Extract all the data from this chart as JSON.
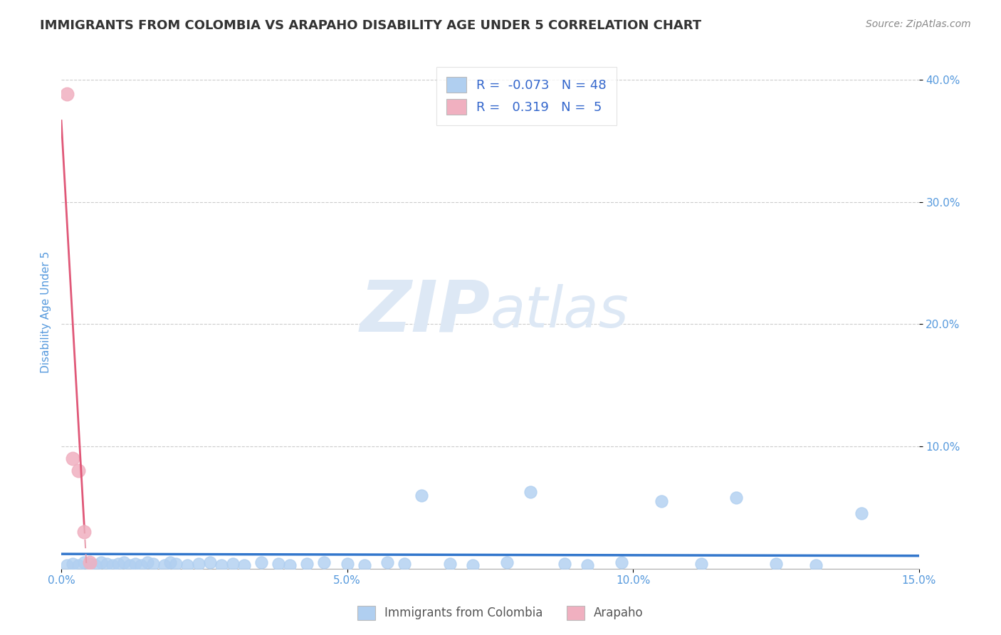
{
  "title": "IMMIGRANTS FROM COLOMBIA VS ARAPAHO DISABILITY AGE UNDER 5 CORRELATION CHART",
  "source": "Source: ZipAtlas.com",
  "ylabel": "Disability Age Under 5",
  "watermark_zip": "ZIP",
  "watermark_atlas": "atlas",
  "xlim": [
    0.0,
    0.15
  ],
  "ylim": [
    0.0,
    0.42
  ],
  "xticks": [
    0.0,
    0.05,
    0.1,
    0.15
  ],
  "xticklabels": [
    "0.0%",
    "5.0%",
    "10.0%",
    "15.0%"
  ],
  "yticks": [
    0.1,
    0.2,
    0.3,
    0.4
  ],
  "yticklabels": [
    "10.0%",
    "20.0%",
    "30.0%",
    "40.0%"
  ],
  "series_blue": {
    "name": "Immigrants from Colombia",
    "R": -0.073,
    "N": 48,
    "color": "#b0cff0",
    "trend_color": "#3377cc",
    "x": [
      0.001,
      0.002,
      0.003,
      0.004,
      0.005,
      0.006,
      0.007,
      0.008,
      0.009,
      0.01,
      0.011,
      0.012,
      0.013,
      0.014,
      0.015,
      0.016,
      0.018,
      0.019,
      0.02,
      0.022,
      0.024,
      0.026,
      0.028,
      0.03,
      0.032,
      0.035,
      0.038,
      0.04,
      0.043,
      0.046,
      0.05,
      0.053,
      0.057,
      0.06,
      0.063,
      0.068,
      0.072,
      0.078,
      0.082,
      0.088,
      0.092,
      0.098,
      0.105,
      0.112,
      0.118,
      0.125,
      0.132,
      0.14
    ],
    "y": [
      0.003,
      0.004,
      0.003,
      0.005,
      0.004,
      0.003,
      0.005,
      0.004,
      0.003,
      0.004,
      0.005,
      0.003,
      0.004,
      0.003,
      0.005,
      0.004,
      0.003,
      0.005,
      0.004,
      0.003,
      0.004,
      0.005,
      0.003,
      0.004,
      0.003,
      0.005,
      0.004,
      0.003,
      0.004,
      0.005,
      0.004,
      0.003,
      0.005,
      0.004,
      0.06,
      0.004,
      0.003,
      0.005,
      0.063,
      0.004,
      0.003,
      0.005,
      0.055,
      0.004,
      0.058,
      0.004,
      0.003,
      0.045
    ]
  },
  "series_pink": {
    "name": "Arapaho",
    "R": 0.319,
    "N": 5,
    "color": "#f0b0c0",
    "trend_color": "#e05878",
    "trend_ext_color": "#e8a0b0",
    "x": [
      0.001,
      0.002,
      0.003,
      0.004,
      0.005
    ],
    "y": [
      0.388,
      0.09,
      0.08,
      0.03,
      0.005
    ]
  },
  "background_color": "#ffffff",
  "grid_color": "#cccccc",
  "axis_label_color": "#5599dd",
  "tick_color": "#5599dd",
  "title_color": "#333333",
  "title_fontsize": 13,
  "watermark_color": "#dde8f5",
  "watermark_fontsize_zip": 72,
  "watermark_fontsize_atlas": 58
}
